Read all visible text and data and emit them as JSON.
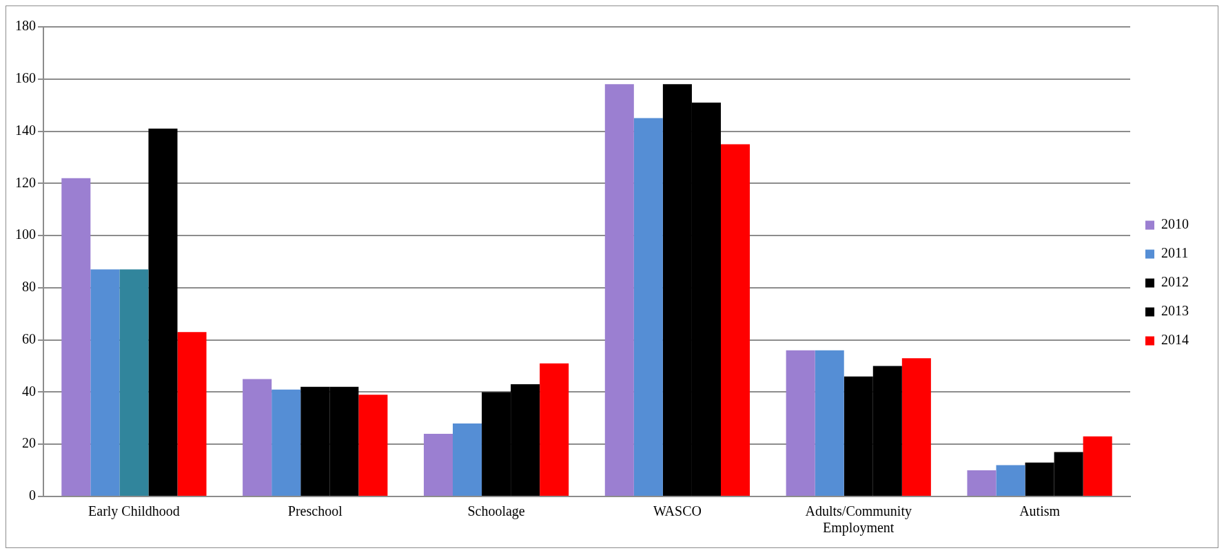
{
  "chart_data": {
    "type": "bar",
    "categories": [
      "Early Childhood",
      "Preschool",
      "Schoolage",
      "WASCO",
      "Adults/Community Employment",
      "Autism"
    ],
    "series": [
      {
        "name": "2010",
        "color": "#9b7fd1",
        "values": [
          122,
          45,
          24,
          158,
          56,
          10
        ]
      },
      {
        "name": "2011",
        "color": "#558ed5",
        "values": [
          87,
          41,
          28,
          145,
          56,
          12
        ]
      },
      {
        "name": "2012",
        "color": "#000000",
        "colors": [
          "#31859c",
          "#000000",
          "#000000",
          "#000000",
          "#000000",
          "#000000"
        ],
        "values": [
          87,
          42,
          40,
          158,
          46,
          13
        ]
      },
      {
        "name": "2013",
        "color": "#000000",
        "values": [
          141,
          42,
          43,
          151,
          50,
          17
        ]
      },
      {
        "name": "2014",
        "color": "#ff0000",
        "values": [
          63,
          39,
          51,
          135,
          53,
          23
        ]
      }
    ],
    "ylim": [
      0,
      180
    ],
    "yticks": [
      0,
      20,
      40,
      60,
      80,
      100,
      120,
      140,
      160,
      180
    ],
    "grid": "y",
    "legend": "right"
  }
}
